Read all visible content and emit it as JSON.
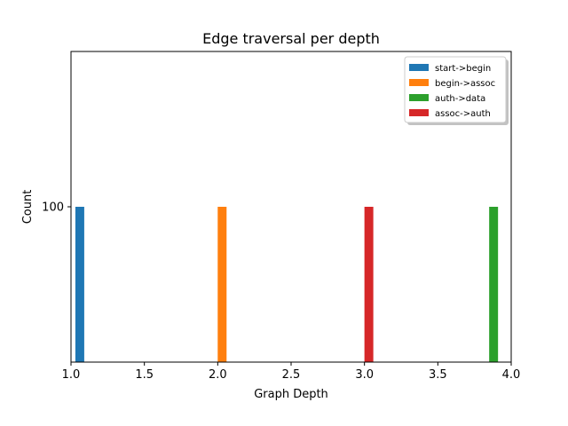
{
  "chart_data": {
    "type": "bar",
    "title": "Edge traversal per depth",
    "xlabel": "Graph Depth",
    "ylabel": "Count",
    "xlim": [
      1.0,
      4.0
    ],
    "ylim": [
      0,
      200
    ],
    "xticks": [
      "1.0",
      "1.5",
      "2.0",
      "2.5",
      "3.0",
      "3.5",
      "4.0"
    ],
    "yticks": [
      "100"
    ],
    "grid": false,
    "legend_position": "top-right",
    "series": [
      {
        "name": "start->begin",
        "color": "#1f77b4",
        "x": [
          1.06
        ],
        "values": [
          100
        ]
      },
      {
        "name": "begin->assoc",
        "color": "#ff7f0e",
        "x": [
          2.03
        ],
        "values": [
          100
        ]
      },
      {
        "name": "auth->data",
        "color": "#2ca02c",
        "x": [
          3.88
        ],
        "values": [
          100
        ]
      },
      {
        "name": "assoc->auth",
        "color": "#d62728",
        "x": [
          3.03
        ],
        "values": [
          100
        ]
      }
    ]
  }
}
